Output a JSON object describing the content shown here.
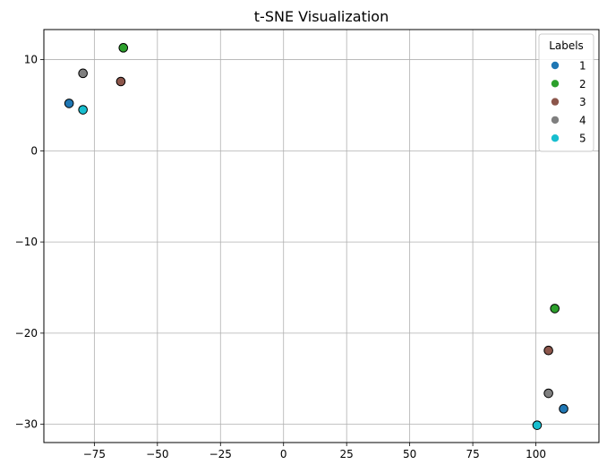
{
  "chart_data": {
    "type": "scatter",
    "title": "t-SNE Visualization",
    "xlabel": "",
    "ylabel": "",
    "xlim": [
      -95,
      125
    ],
    "ylim": [
      -32,
      13.3
    ],
    "xticks": [
      -75,
      -50,
      -25,
      0,
      25,
      50,
      75,
      100
    ],
    "xtick_labels": [
      "−75",
      "−50",
      "−25",
      "0",
      "25",
      "50",
      "75",
      "100"
    ],
    "yticks": [
      10,
      0,
      -10,
      -20,
      -30
    ],
    "ytick_labels": [
      "10",
      "0",
      "−10",
      "−20",
      "−30"
    ],
    "grid": true,
    "legend": {
      "title": "Labels",
      "placement": "top-right"
    },
    "series": [
      {
        "name": "1",
        "color": "#1f77b4",
        "points": [
          [
            -85,
            5.2
          ],
          [
            111,
            -28.3
          ]
        ]
      },
      {
        "name": "2",
        "color": "#2ca02c",
        "points": [
          [
            -63.5,
            11.3
          ],
          [
            107.5,
            -17.3
          ]
        ]
      },
      {
        "name": "3",
        "color": "#8c564b",
        "points": [
          [
            -64.5,
            7.6
          ],
          [
            105,
            -21.9
          ]
        ]
      },
      {
        "name": "4",
        "color": "#7f7f7f",
        "points": [
          [
            -79.5,
            8.5
          ],
          [
            105,
            -26.6
          ]
        ]
      },
      {
        "name": "5",
        "color": "#17becf",
        "points": [
          [
            -79.5,
            4.5
          ],
          [
            100.5,
            -30.1
          ]
        ]
      }
    ]
  }
}
